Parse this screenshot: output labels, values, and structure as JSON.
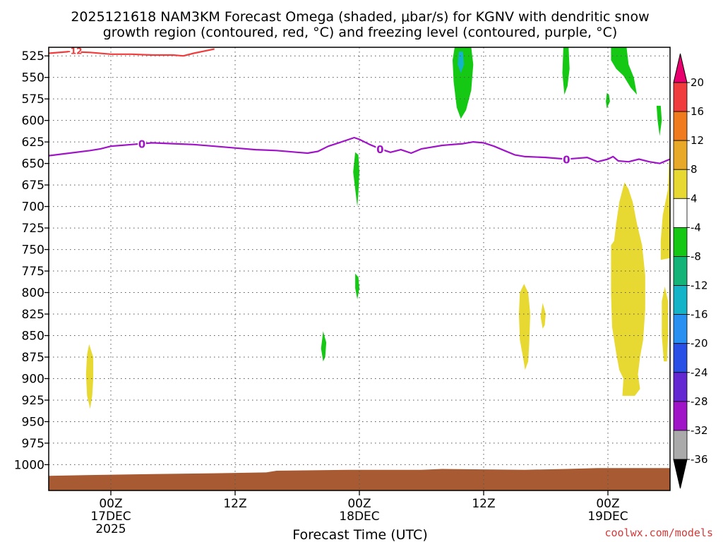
{
  "chart_data": {
    "type": "heatmap",
    "title_line1": "2025121618 NAM3KM Forecast Omega (shaded, μbar/s) for KGNV with dendritic snow",
    "title_line2": "growth region (contoured, red, °C) and freezing level (contoured, purple, °C)",
    "xlabel": "Forecast Time (UTC)",
    "credit": "coolwx.com/models",
    "y_axis": {
      "scale": "pressure",
      "ticks": [
        525,
        550,
        575,
        600,
        625,
        650,
        675,
        700,
        725,
        750,
        775,
        800,
        825,
        850,
        875,
        900,
        925,
        950,
        975,
        1000
      ],
      "range": [
        515,
        1030
      ]
    },
    "x_axis": {
      "range_hours": [
        -6,
        54
      ],
      "ticks": [
        {
          "hour": 0,
          "label": "00Z",
          "sub1": "17DEC",
          "sub2": "2025"
        },
        {
          "hour": 12,
          "label": "12Z",
          "sub1": "",
          "sub2": ""
        },
        {
          "hour": 24,
          "label": "00Z",
          "sub1": "18DEC",
          "sub2": ""
        },
        {
          "hour": 36,
          "label": "12Z",
          "sub1": "",
          "sub2": ""
        },
        {
          "hour": 48,
          "label": "00Z",
          "sub1": "19DEC",
          "sub2": ""
        }
      ]
    },
    "colorbar": {
      "labels": [
        "20",
        "16",
        "12",
        "8",
        "4",
        "-4",
        "-8",
        "-12",
        "-16",
        "-20",
        "-24",
        "-28",
        "-32",
        "-36"
      ],
      "bins": [
        {
          "lo": 20,
          "hi": 24,
          "color": "#e8006e"
        },
        {
          "lo": 16,
          "hi": 20,
          "color": "#f03c3c"
        },
        {
          "lo": 12,
          "hi": 16,
          "color": "#f07a1e"
        },
        {
          "lo": 8,
          "hi": 12,
          "color": "#e8a828"
        },
        {
          "lo": 4,
          "hi": 8,
          "color": "#e8d832"
        },
        {
          "lo": -4,
          "hi": 4,
          "color": "#ffffff"
        },
        {
          "lo": -8,
          "hi": -4,
          "color": "#14c814"
        },
        {
          "lo": -12,
          "hi": -8,
          "color": "#14b478"
        },
        {
          "lo": -16,
          "hi": -12,
          "color": "#14b4c8"
        },
        {
          "lo": -20,
          "hi": -16,
          "color": "#2890f0"
        },
        {
          "lo": -24,
          "hi": -20,
          "color": "#2850e6"
        },
        {
          "lo": -28,
          "hi": -24,
          "color": "#6428d2"
        },
        {
          "lo": -32,
          "hi": -28,
          "color": "#a014c8"
        },
        {
          "lo": -36,
          "hi": -32,
          "color": "#aaaaaa"
        },
        {
          "lo": -40,
          "hi": -36,
          "color": "#000000"
        }
      ]
    },
    "freezing_level": {
      "label": "0",
      "color": "#a014c8",
      "points": [
        [
          -6,
          641
        ],
        [
          -4,
          638
        ],
        [
          -2,
          635
        ],
        [
          -1,
          633
        ],
        [
          0,
          630
        ],
        [
          1,
          629
        ],
        [
          2,
          628
        ],
        [
          3,
          627
        ],
        [
          4,
          626
        ],
        [
          6,
          627
        ],
        [
          8,
          628
        ],
        [
          10,
          630
        ],
        [
          12,
          632
        ],
        [
          14,
          634
        ],
        [
          16,
          635
        ],
        [
          18,
          637
        ],
        [
          19,
          638
        ],
        [
          20,
          636
        ],
        [
          21,
          630
        ],
        [
          22,
          626
        ],
        [
          23,
          622
        ],
        [
          23.5,
          620
        ],
        [
          24,
          622
        ],
        [
          25,
          628
        ],
        [
          26,
          633
        ],
        [
          27,
          637
        ],
        [
          28,
          634
        ],
        [
          29,
          638
        ],
        [
          30,
          633
        ],
        [
          32,
          629
        ],
        [
          34,
          627
        ],
        [
          35,
          625
        ],
        [
          36,
          626
        ],
        [
          37,
          630
        ],
        [
          38,
          635
        ],
        [
          39,
          640
        ],
        [
          40,
          642
        ],
        [
          42,
          643
        ],
        [
          44,
          645
        ],
        [
          45,
          644
        ],
        [
          46,
          643
        ],
        [
          47,
          648
        ],
        [
          48,
          645
        ],
        [
          48.5,
          642
        ],
        [
          49,
          647
        ],
        [
          50,
          648
        ],
        [
          51,
          645
        ],
        [
          52,
          648
        ],
        [
          53,
          650
        ],
        [
          54,
          645
        ]
      ],
      "label_hours": [
        3,
        26,
        44
      ]
    },
    "dgz_contour": {
      "label": "-12",
      "color": "#f03c3c",
      "points": [
        [
          -6,
          522
        ],
        [
          -4,
          520
        ],
        [
          -2,
          521
        ],
        [
          0,
          523
        ],
        [
          2,
          523
        ],
        [
          4,
          524
        ],
        [
          6,
          524
        ],
        [
          7,
          525
        ],
        [
          8,
          522
        ],
        [
          10,
          517
        ]
      ],
      "label_hour": -3.5
    },
    "omega_regions": [
      {
        "value": -6,
        "points": [
          [
            33.2,
            515
          ],
          [
            34.8,
            515
          ],
          [
            35,
            535
          ],
          [
            34.8,
            565
          ],
          [
            34.3,
            588
          ],
          [
            33.8,
            598
          ],
          [
            33.4,
            585
          ],
          [
            33.1,
            555
          ],
          [
            33,
            530
          ]
        ]
      },
      {
        "value": -14,
        "points": [
          [
            33.6,
            520
          ],
          [
            34,
            520
          ],
          [
            34.1,
            535
          ],
          [
            33.8,
            545
          ],
          [
            33.5,
            535
          ]
        ]
      },
      {
        "value": -6,
        "points": [
          [
            43.7,
            515
          ],
          [
            44.2,
            515
          ],
          [
            44.3,
            540
          ],
          [
            44.1,
            560
          ],
          [
            43.8,
            570
          ],
          [
            43.6,
            545
          ]
        ]
      },
      {
        "value": -6,
        "points": [
          [
            47.9,
            568
          ],
          [
            48.1,
            570
          ],
          [
            48.2,
            578
          ],
          [
            47.9,
            586
          ],
          [
            47.8,
            578
          ]
        ]
      },
      {
        "value": -6,
        "points": [
          [
            48.3,
            515
          ],
          [
            49.8,
            515
          ],
          [
            50,
            535
          ],
          [
            50.5,
            550
          ],
          [
            50.8,
            570
          ],
          [
            50.2,
            562
          ],
          [
            49.5,
            548
          ],
          [
            48.8,
            540
          ],
          [
            48.3,
            530
          ]
        ]
      },
      {
        "value": -6,
        "points": [
          [
            52.7,
            583
          ],
          [
            53.1,
            583
          ],
          [
            53.2,
            600
          ],
          [
            53,
            618
          ],
          [
            52.8,
            600
          ]
        ]
      },
      {
        "value": -6,
        "points": [
          [
            23.6,
            637
          ],
          [
            23.9,
            640
          ],
          [
            24,
            660
          ],
          [
            23.9,
            685
          ],
          [
            23.8,
            700
          ],
          [
            23.6,
            680
          ],
          [
            23.4,
            660
          ]
        ]
      },
      {
        "value": -6,
        "points": [
          [
            23.6,
            778
          ],
          [
            23.9,
            782
          ],
          [
            24,
            795
          ],
          [
            23.8,
            808
          ],
          [
            23.6,
            795
          ]
        ]
      },
      {
        "value": -6,
        "points": [
          [
            20.5,
            845
          ],
          [
            20.8,
            858
          ],
          [
            20.7,
            875
          ],
          [
            20.5,
            880
          ],
          [
            20.3,
            865
          ]
        ]
      },
      {
        "value": 6,
        "points": [
          [
            53.8,
            680
          ],
          [
            54,
            620
          ],
          [
            54,
            760
          ],
          [
            53.1,
            762
          ],
          [
            53.1,
            740
          ],
          [
            53.3,
            710
          ]
        ]
      },
      {
        "value": 6,
        "points": [
          [
            49.6,
            672
          ],
          [
            50,
            680
          ],
          [
            50.4,
            695
          ],
          [
            50.8,
            720
          ],
          [
            51.3,
            745
          ],
          [
            51.6,
            780
          ],
          [
            51.6,
            820
          ],
          [
            51.4,
            855
          ],
          [
            51.1,
            875
          ],
          [
            50.9,
            895
          ],
          [
            51.1,
            912
          ],
          [
            50.6,
            920
          ],
          [
            49.4,
            920
          ],
          [
            49.5,
            900
          ],
          [
            49.1,
            890
          ],
          [
            48.8,
            870
          ],
          [
            48.4,
            840
          ],
          [
            48.3,
            800
          ],
          [
            48.3,
            745
          ],
          [
            48.6,
            740
          ],
          [
            48.8,
            720
          ],
          [
            49.1,
            695
          ]
        ]
      },
      {
        "value": 6,
        "points": [
          [
            53.5,
            793
          ],
          [
            53.8,
            810
          ],
          [
            53.8,
            850
          ],
          [
            53.7,
            880
          ],
          [
            53.4,
            880
          ],
          [
            53.2,
            850
          ],
          [
            53.2,
            810
          ]
        ]
      },
      {
        "value": 6,
        "points": [
          [
            39.9,
            790
          ],
          [
            40.3,
            800
          ],
          [
            40.5,
            825
          ],
          [
            40.4,
            860
          ],
          [
            40.3,
            880
          ],
          [
            40,
            890
          ],
          [
            39.8,
            875
          ],
          [
            39.5,
            855
          ],
          [
            39.4,
            825
          ],
          [
            39.5,
            800
          ]
        ]
      },
      {
        "value": 6,
        "points": [
          [
            41.7,
            812
          ],
          [
            42,
            825
          ],
          [
            41.9,
            838
          ],
          [
            41.7,
            842
          ],
          [
            41.5,
            828
          ]
        ]
      },
      {
        "value": 6,
        "points": [
          [
            -2.1,
            860
          ],
          [
            -1.7,
            875
          ],
          [
            -1.7,
            900
          ],
          [
            -1.8,
            920
          ],
          [
            -2,
            935
          ],
          [
            -2.3,
            920
          ],
          [
            -2.4,
            895
          ],
          [
            -2.3,
            872
          ]
        ]
      }
    ],
    "terrain": {
      "color": "#a85a32",
      "surface": [
        [
          -6,
          1013
        ],
        [
          -2,
          1012
        ],
        [
          4,
          1011
        ],
        [
          10,
          1010
        ],
        [
          15,
          1009
        ],
        [
          16,
          1007
        ],
        [
          23,
          1006
        ],
        [
          30,
          1006
        ],
        [
          32,
          1005
        ],
        [
          40,
          1006
        ],
        [
          44,
          1005
        ],
        [
          47,
          1004
        ],
        [
          54,
          1004
        ]
      ]
    },
    "grid": true
  }
}
